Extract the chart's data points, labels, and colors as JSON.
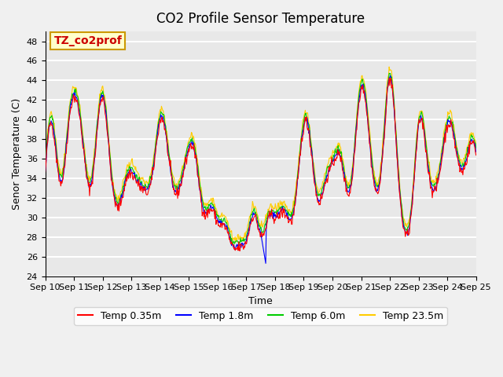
{
  "title": "CO2 Profile Sensor Temperature",
  "ylabel": "Senor Temperature (C)",
  "xlabel": "Time",
  "ylim": [
    24,
    49
  ],
  "yticks": [
    24,
    26,
    28,
    30,
    32,
    34,
    36,
    38,
    40,
    42,
    44,
    46,
    48
  ],
  "xtick_labels": [
    "Sep 10",
    "Sep 11",
    "Sep 12",
    "Sep 13",
    "Sep 14",
    "Sep 15",
    "Sep 16",
    "Sep 17",
    "Sep 18",
    "Sep 19",
    "Sep 20",
    "Sep 21",
    "Sep 22",
    "Sep 23",
    "Sep 24",
    "Sep 25"
  ],
  "series_colors": [
    "#ff0000",
    "#0000ff",
    "#00cc00",
    "#ffcc00"
  ],
  "series_labels": [
    "Temp 0.35m",
    "Temp 1.8m",
    "Temp 6.0m",
    "Temp 23.5m"
  ],
  "annotation_text": "TZ_co2prof",
  "annotation_color": "#cc0000",
  "annotation_bg": "#ffffcc",
  "annotation_border": "#cc9900",
  "background_color": "#e8e8e8",
  "plot_bg": "#e8e8e8",
  "grid_color": "#ffffff"
}
